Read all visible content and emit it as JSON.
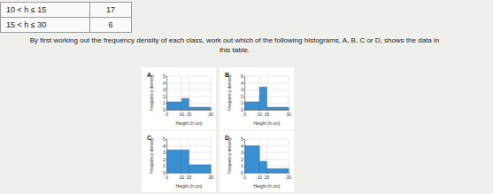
{
  "table": {
    "rows": [
      [
        "10 < h ≤ 15",
        17
      ],
      [
        "15 < h ≤ 30",
        6
      ]
    ]
  },
  "question": "By first working out the frequency density of each class, work out which of the following histograms, A, B, C or D, shows the data in this table.",
  "chart_data": [
    {
      "type": "histogram",
      "title": "A",
      "x_label": "Height (h cm)",
      "y_label": "Frequency density",
      "bins": [
        0,
        10,
        15,
        30
      ],
      "values": [
        1.2,
        1.7,
        0.4
      ],
      "color": "#3a8fd0",
      "xlim": [
        0,
        30
      ],
      "ylim": [
        0,
        5
      ],
      "xticks": [
        0,
        10,
        15,
        30
      ],
      "yticks": [
        0,
        1,
        2,
        3,
        4,
        5
      ],
      "grid": true
    },
    {
      "type": "histogram",
      "title": "B",
      "x_label": "Height (h cm)",
      "y_label": "Frequency density",
      "bins": [
        0,
        10,
        15,
        30
      ],
      "values": [
        1.2,
        3.4,
        0.4
      ],
      "color": "#3a8fd0",
      "xlim": [
        0,
        30
      ],
      "ylim": [
        0,
        5
      ],
      "xticks": [
        0,
        10,
        15,
        30
      ],
      "yticks": [
        0,
        1,
        2,
        3,
        4,
        5
      ],
      "grid": true
    },
    {
      "type": "histogram",
      "title": "C",
      "x_label": "Height (h cm)",
      "y_label": "Frequency density",
      "bins": [
        0,
        10,
        15,
        30
      ],
      "values": [
        3.4,
        3.4,
        1.2
      ],
      "color": "#3a8fd0",
      "xlim": [
        0,
        30
      ],
      "ylim": [
        0,
        5
      ],
      "xticks": [
        0,
        10,
        15,
        30
      ],
      "yticks": [
        0,
        1,
        2,
        3,
        4,
        5
      ],
      "grid": true
    },
    {
      "type": "histogram",
      "title": "D",
      "x_label": "Height (h cm)",
      "y_label": "Frequency density",
      "bins": [
        0,
        10,
        15,
        30
      ],
      "values": [
        4.0,
        1.7,
        0.6
      ],
      "color": "#3a8fd0",
      "xlim": [
        0,
        30
      ],
      "ylim": [
        0,
        5
      ],
      "xticks": [
        0,
        10,
        15,
        30
      ],
      "yticks": [
        0,
        1,
        2,
        3,
        4,
        5
      ],
      "grid": true
    }
  ]
}
